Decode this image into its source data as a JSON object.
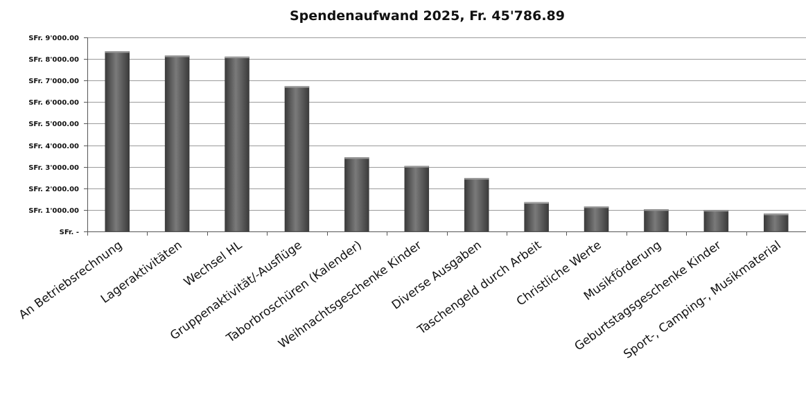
{
  "chart_data": {
    "type": "bar",
    "title": "Spendenaufwand 2025, Fr. 45'786.89",
    "xlabel": "",
    "ylabel": "",
    "categories": [
      "An Betriebsrechnung",
      "Lageraktivitäten",
      "Wechsel HL",
      "Gruppenaktivität/-Ausflüge",
      "Taborbroschüren (Kalender)",
      "Weihnachtsgeschenke Kinder",
      "Diverse Ausgaben",
      "Taschengeld durch Arbeit",
      "Christliche Werte",
      "Musikförderung",
      "Geburtstagsgeschenke Kinder",
      "Sport-, Camping-, Musikmaterial"
    ],
    "values": [
      8350,
      8150,
      8100,
      6730,
      3430,
      3030,
      2470,
      1350,
      1150,
      1020,
      990,
      820
    ],
    "ylim": [
      0,
      9000
    ],
    "yticks": [
      {
        "value": 0,
        "label": "SFr. -"
      },
      {
        "value": 1000,
        "label": "SFr. 1'000.00"
      },
      {
        "value": 2000,
        "label": "SFr. 2'000.00"
      },
      {
        "value": 3000,
        "label": "SFr. 3'000.00"
      },
      {
        "value": 4000,
        "label": "SFr. 4'000.00"
      },
      {
        "value": 5000,
        "label": "SFr. 5'000.00"
      },
      {
        "value": 6000,
        "label": "SFr. 6'000.00"
      },
      {
        "value": 7000,
        "label": "SFr. 7'000.00"
      },
      {
        "value": 8000,
        "label": "SFr. 8'000.00"
      },
      {
        "value": 9000,
        "label": "SFr. 9'000.00"
      }
    ],
    "grid": true,
    "legend": "none",
    "colors": {
      "bar": "#555555",
      "bar_light": "#7a7a7a",
      "bar_dark": "#3a3a3a",
      "grid": "#9a9a9a",
      "axis": "#555555"
    }
  }
}
